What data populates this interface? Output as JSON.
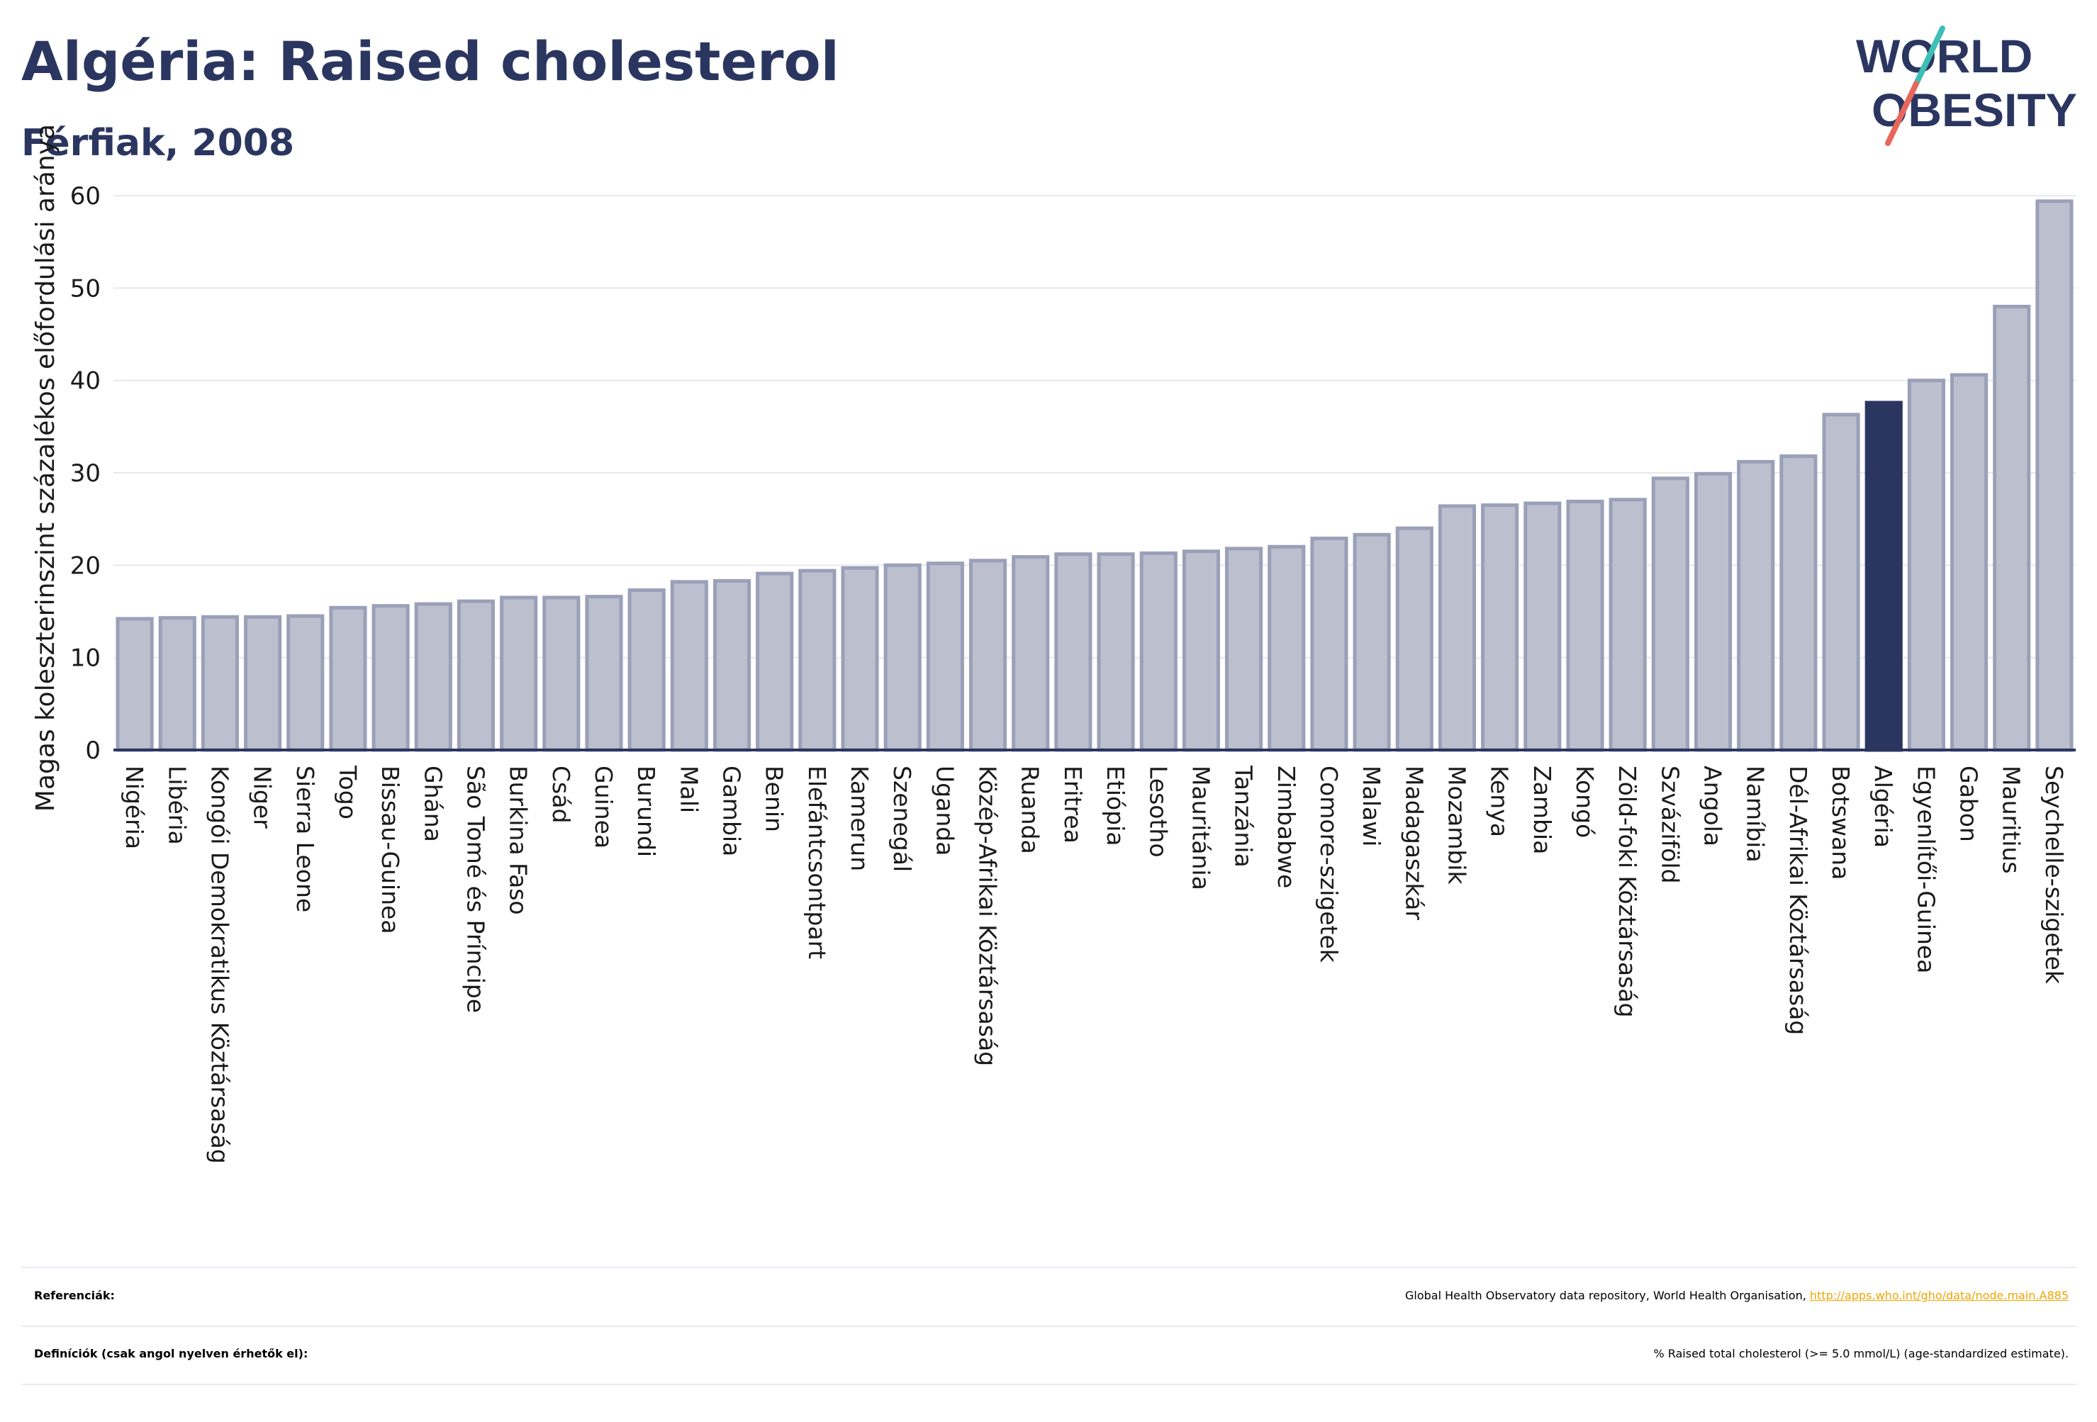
{
  "header": {
    "title": "Algéria: Raised cholesterol",
    "subtitle": "Férfiak, 2008"
  },
  "logo": {
    "line1": "WORLD",
    "line2": "OBESITY"
  },
  "colors": {
    "title": "#2b3660",
    "bar": "#bcc0ce",
    "bar_stroke": "#9aa0b8",
    "highlight": "#2b3660",
    "link": "#f0a500",
    "logo_teal": "#3dbfb6",
    "logo_red": "#e8675a"
  },
  "chart_data": {
    "type": "bar",
    "ylabel": "Magas koleszterinszint százalékos előfordulási aránya",
    "ylim": [
      0,
      62
    ],
    "yticks": [
      0,
      10,
      20,
      30,
      40,
      50,
      60
    ],
    "grid": true,
    "highlight": "Algéria",
    "categories": [
      "Nigéria",
      "Libéria",
      "Kongói Demokratikus Köztársaság",
      "Niger",
      "Sierra Leone",
      "Togo",
      "Bissau-Guinea",
      "Ghána",
      "São Tomé és Príncipe",
      "Burkina Faso",
      "Csád",
      "Guinea",
      "Burundi",
      "Mali",
      "Gambia",
      "Benin",
      "Elefántcsontpart",
      "Kamerun",
      "Szenegál",
      "Uganda",
      "Közép-Afrikai Köztársaság",
      "Ruanda",
      "Eritrea",
      "Etiópia",
      "Lesotho",
      "Mauritánia",
      "Tanzánia",
      "Zimbabwe",
      "Comore-szigetek",
      "Malawi",
      "Madagaszkár",
      "Mozambik",
      "Kenya",
      "Zambia",
      "Kongó",
      "Zöld-foki Köztársaság",
      "Szváziföld",
      "Angola",
      "Namíbia",
      "Dél-Afrikai Köztársaság",
      "Botswana",
      "Algéria",
      "Egyenlítői-Guinea",
      "Gabon",
      "Mauritius",
      "Seychelle-szigetek"
    ],
    "values": [
      14.2,
      14.3,
      14.4,
      14.4,
      14.5,
      15.4,
      15.6,
      15.8,
      16.1,
      16.5,
      16.5,
      16.6,
      17.3,
      18.2,
      18.3,
      19.1,
      19.4,
      19.7,
      20.0,
      20.2,
      20.5,
      20.9,
      21.2,
      21.2,
      21.3,
      21.5,
      21.8,
      22.0,
      22.9,
      23.3,
      24.0,
      26.4,
      26.5,
      26.7,
      26.9,
      27.1,
      29.4,
      29.9,
      31.2,
      31.8,
      36.3,
      37.6,
      40.0,
      40.6,
      48.0,
      59.4
    ]
  },
  "references": {
    "label": "Referenciák:",
    "text": "Global Health Observatory data repository, World Health Organisation, ",
    "link": "http://apps.who.int/gho/data/node.main.A885"
  },
  "definitions": {
    "label": "Definíciók (csak angol nyelven érhetők el):",
    "text": "% Raised total cholesterol (>= 5.0 mmol/L) (age-standardized estimate)."
  }
}
